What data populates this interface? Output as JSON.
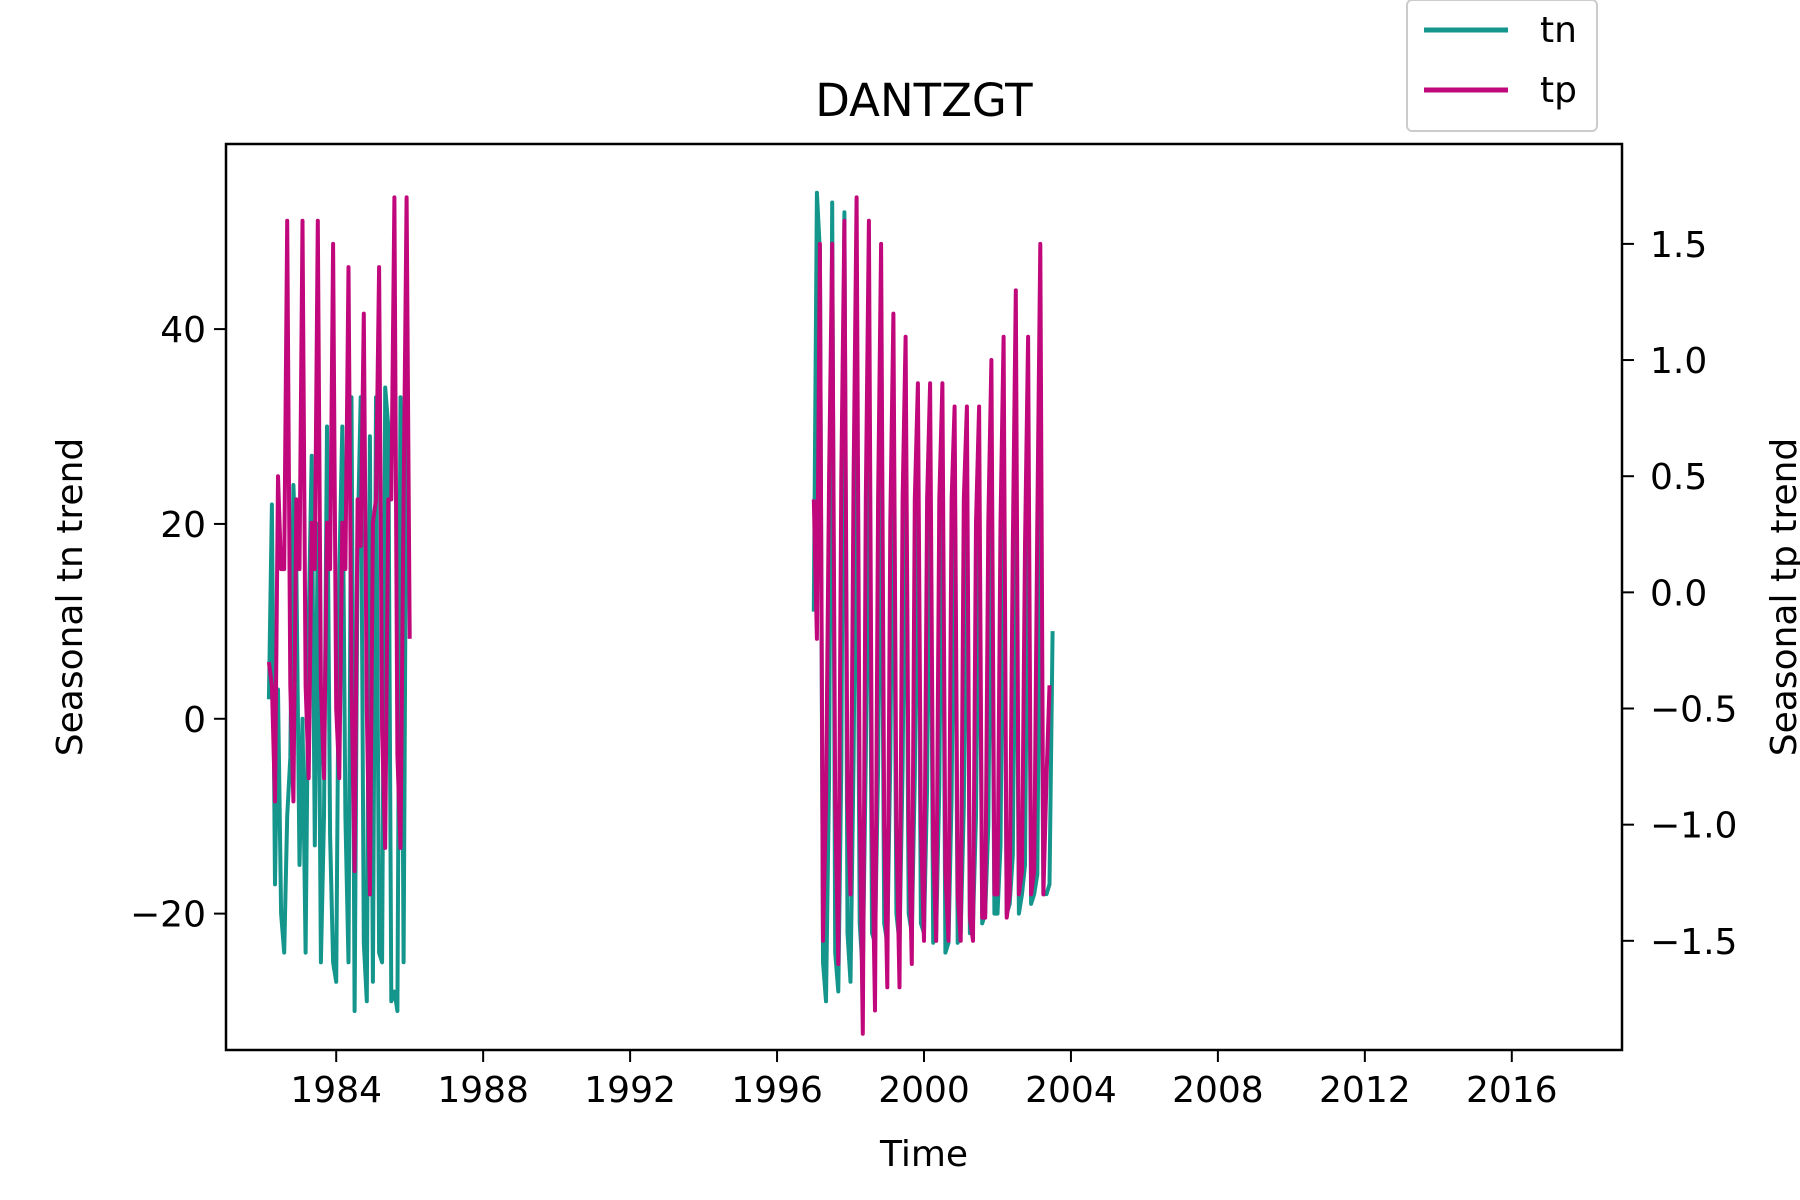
{
  "chart_data": {
    "type": "line",
    "title": "DANTZGT",
    "xlabel": "Time",
    "ylabel_left": "Seasonal tn trend",
    "ylabel_right": "Seasonal tp trend",
    "xlim": [
      "1981-01-01",
      "2019-01-01"
    ],
    "ylim_left": [
      -34,
      59
    ],
    "ylim_right": [
      -1.97,
      1.93
    ],
    "xticks": [
      "1984",
      "1988",
      "1992",
      "1996",
      "2000",
      "2004",
      "2008",
      "2012",
      "2016"
    ],
    "yticks_left": [
      "−20",
      "0",
      "20",
      "40"
    ],
    "yticks_right": [
      "−1.5",
      "−1.0",
      "−0.5",
      "0.0",
      "0.5",
      "1.0",
      "1.5"
    ],
    "legend_position": "upper-right, above axes",
    "grid": false,
    "colors": {
      "tn": "#14968c",
      "tp": "#c0077b"
    },
    "series": [
      {
        "name": "tn",
        "axis": "left",
        "segments": [
          {
            "start": "1982-03",
            "values": [
              2,
              22,
              -17,
              3,
              -20,
              -24,
              -10,
              -4,
              24,
              15,
              -15,
              0,
              -24,
              10,
              27,
              -13,
              20,
              -25,
              -10,
              30,
              -12,
              -25,
              -27,
              15,
              30,
              -10,
              -25,
              33,
              -30,
              18,
              33,
              -23,
              -29,
              29,
              -27,
              33,
              -24,
              -25,
              34,
              30,
              -29,
              -28,
              -30,
              33,
              -25,
              35
            ]
          },
          {
            "start": "1997-01",
            "values": [
              11,
              54,
              48,
              -25,
              -29,
              -6,
              53,
              -24,
              -28,
              -5,
              52,
              -22,
              -27,
              -4,
              33,
              -21,
              -26,
              -4,
              31,
              -22,
              -23,
              -5,
              30,
              -21,
              -23,
              -4,
              30,
              -20,
              -23,
              -5,
              28,
              -20,
              -22,
              -6,
              27,
              -21,
              -22,
              -7,
              29,
              -23,
              -22,
              -7,
              28,
              -24,
              -23,
              -8,
              27,
              -23,
              -22,
              -9,
              25,
              -22,
              -21,
              -10,
              23,
              -21,
              -20,
              -11,
              23,
              -20,
              -20,
              -13,
              25,
              -20,
              -19,
              -14,
              24,
              -20,
              -18,
              -15,
              24,
              -19,
              -18,
              -16,
              23,
              -18,
              -18,
              -17,
              9
            ]
          }
        ]
      },
      {
        "name": "tp",
        "axis": "right",
        "segments": [
          {
            "start": "1982-03",
            "values": [
              -0.3,
              -0.4,
              -0.9,
              0.5,
              0.1,
              0.1,
              1.6,
              -0.4,
              -0.9,
              0.4,
              0.1,
              1.6,
              -0.4,
              -0.8,
              0.3,
              0.1,
              1.6,
              -0.4,
              -0.8,
              0.3,
              0.1,
              1.5,
              -0.5,
              -0.8,
              0.3,
              0.1,
              1.4,
              -0.4,
              -1.2,
              0.4,
              0.2,
              1.2,
              -0.5,
              -1.3,
              0.3,
              0.4,
              1.4,
              -0.6,
              -1.1,
              0.4,
              0.4,
              1.7,
              -0.7,
              -1.1,
              0.4,
              1.7,
              -0.2
            ]
          },
          {
            "start": "1997-01",
            "values": [
              0.4,
              -0.2,
              1.5,
              -1.5,
              -0.9,
              0.5,
              1.5,
              -0.9,
              -1.6,
              0.5,
              1.6,
              -0.9,
              -1.3,
              0.5,
              1.7,
              -0.9,
              -1.9,
              0.4,
              1.6,
              -1.0,
              -1.8,
              0.4,
              1.5,
              -1.0,
              -1.7,
              0.3,
              1.2,
              -1.0,
              -1.7,
              0.4,
              1.1,
              -1.0,
              -1.6,
              0.4,
              0.9,
              -1.0,
              -1.5,
              0.4,
              0.9,
              -1.1,
              -1.5,
              0.4,
              0.9,
              -1.2,
              -1.5,
              0.4,
              0.8,
              -1.3,
              -1.5,
              0.4,
              0.8,
              -1.4,
              -1.5,
              0.3,
              0.8,
              -1.4,
              -1.4,
              0.3,
              1.0,
              -1.3,
              -1.3,
              0.3,
              1.1,
              -1.4,
              -1.3,
              0.2,
              1.3,
              -1.3,
              -1.2,
              0.2,
              1.1,
              -1.3,
              -1.2,
              0.3,
              1.5,
              -1.3,
              -0.8,
              -0.4
            ]
          }
        ]
      }
    ]
  }
}
